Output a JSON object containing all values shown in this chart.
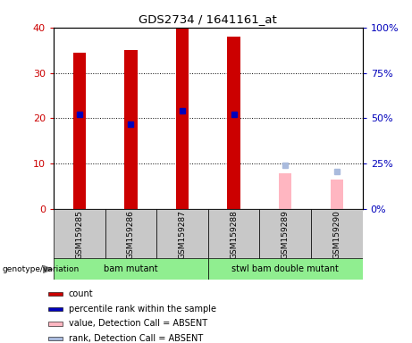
{
  "title": "GDS2734 / 1641161_at",
  "samples": [
    "GSM159285",
    "GSM159286",
    "GSM159287",
    "GSM159288",
    "GSM159289",
    "GSM159290"
  ],
  "count_values": [
    34.5,
    35.0,
    40.0,
    38.0,
    null,
    null
  ],
  "rank_values_pct": [
    52.0,
    47.0,
    54.0,
    52.0,
    null,
    null
  ],
  "absent_value": [
    null,
    null,
    null,
    null,
    8.0,
    6.5
  ],
  "absent_rank_pct": [
    null,
    null,
    null,
    null,
    24.0,
    21.0
  ],
  "ylim_left": [
    0,
    40
  ],
  "ylim_right": [
    0,
    100
  ],
  "yticks_left": [
    0,
    10,
    20,
    30,
    40
  ],
  "yticks_right": [
    0,
    25,
    50,
    75,
    100
  ],
  "ytick_labels_right": [
    "0%",
    "25%",
    "50%",
    "75%",
    "100%"
  ],
  "bar_width": 0.25,
  "bar_color_red": "#CC0000",
  "bar_color_blue": "#0000BB",
  "bar_color_pink": "#FFB6C1",
  "bar_color_lightblue": "#AABBDD",
  "sample_bg": "#C8C8C8",
  "group1_color": "#90EE90",
  "group2_color": "#90EE90",
  "left_tick_color": "#CC0000",
  "right_tick_color": "#0000BB",
  "legend_items": [
    {
      "label": "count",
      "color": "#CC0000"
    },
    {
      "label": "percentile rank within the sample",
      "color": "#0000BB"
    },
    {
      "label": "value, Detection Call = ABSENT",
      "color": "#FFB6C1"
    },
    {
      "label": "rank, Detection Call = ABSENT",
      "color": "#AABBDD"
    }
  ]
}
